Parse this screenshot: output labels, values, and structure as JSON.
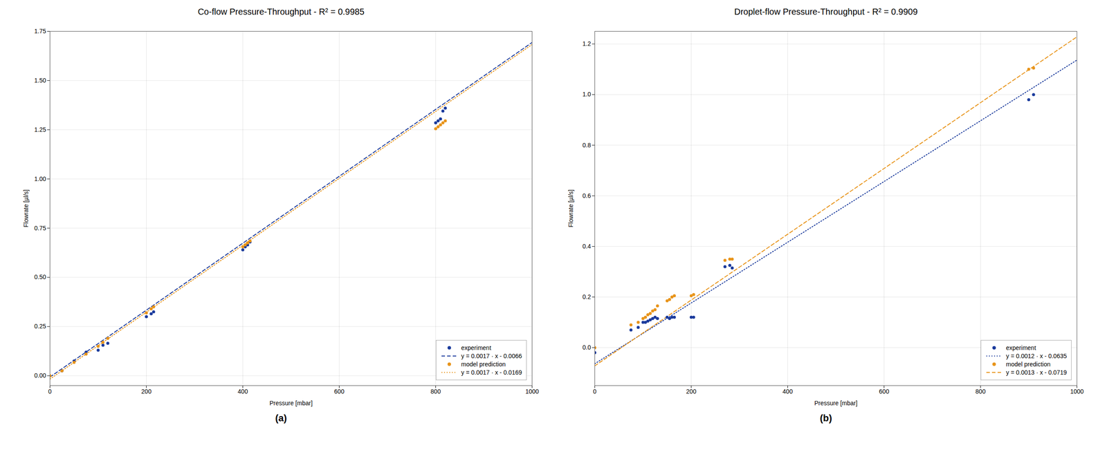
{
  "chart_data": [
    {
      "type": "scatter",
      "title": "Co-flow Pressure-Throughput - R² = 0.9985",
      "x_label": "Pressure [mbar]",
      "y_label": "Flowrate [µl/s]",
      "caption": "(a)",
      "xlim": [
        0,
        1000
      ],
      "ylim": [
        -0.05,
        1.75
      ],
      "xticks": [
        0,
        200,
        400,
        600,
        800,
        1000
      ],
      "yticks": [
        {
          "value": 0.0,
          "label": "0.00"
        },
        0.25,
        {
          "value": 0.5,
          "label": "0.50"
        },
        0.75,
        {
          "value": 1.0,
          "label": "1.00"
        },
        1.25,
        {
          "value": 1.5,
          "label": "1.50"
        },
        1.75
      ],
      "grid": true,
      "legend": "lower right",
      "series": [
        {
          "name": "experiment",
          "type": "scatter",
          "marker": "circle",
          "color": "#1a3a9c",
          "x": [
            25,
            50,
            75,
            100,
            110,
            120,
            200,
            210,
            215,
            400,
            405,
            410,
            415,
            800,
            805,
            810,
            815,
            820
          ],
          "values": [
            0.025,
            0.075,
            0.12,
            0.13,
            0.155,
            0.165,
            0.3,
            0.315,
            0.325,
            0.64,
            0.655,
            0.665,
            0.68,
            1.285,
            1.295,
            1.305,
            1.345,
            1.36
          ]
        },
        {
          "name": "y = 0.0017 · x - 0.0066",
          "type": "line",
          "line_style": "dashed",
          "color": "#1a3a9c",
          "x": [
            0,
            1000
          ],
          "values": [
            -0.0066,
            1.6934
          ]
        },
        {
          "name": "model prediction",
          "type": "scatter",
          "marker": "circle",
          "color": "#e8941a",
          "x": [
            0,
            25,
            50,
            75,
            100,
            110,
            120,
            200,
            210,
            215,
            400,
            405,
            410,
            415,
            800,
            805,
            810,
            815,
            820
          ],
          "values": [
            0.0,
            0.025,
            0.068,
            0.11,
            0.15,
            0.17,
            0.19,
            0.32,
            0.34,
            0.35,
            0.655,
            0.665,
            0.675,
            0.685,
            1.255,
            1.265,
            1.275,
            1.285,
            1.295
          ]
        },
        {
          "name": "y = 0.0017 · x - 0.0169",
          "type": "line",
          "line_style": "dotted",
          "color": "#e8941a",
          "x": [
            0,
            1000
          ],
          "values": [
            -0.0169,
            1.6831
          ]
        }
      ]
    },
    {
      "type": "scatter",
      "title": "Droplet-flow Pressure-Throughput - R² = 0.9909",
      "x_label": "Pressure [mbar]",
      "y_label": "Flowrate [µl/s]",
      "caption": "(b)",
      "xlim": [
        0,
        1000
      ],
      "ylim": [
        -0.15,
        1.25
      ],
      "xticks": [
        0,
        200,
        400,
        600,
        800,
        1000
      ],
      "yticks": [
        {
          "value": 0.0,
          "label": "0.0"
        },
        0.2,
        0.4,
        0.6,
        0.8,
        {
          "value": 1.0,
          "label": "1.0"
        },
        1.2
      ],
      "grid": true,
      "legend": "lower right",
      "series": [
        {
          "name": "experiment",
          "type": "scatter",
          "marker": "circle",
          "color": "#1a3a9c",
          "x": [
            0,
            75,
            90,
            100,
            105,
            110,
            115,
            120,
            125,
            130,
            150,
            155,
            160,
            165,
            200,
            205,
            270,
            280,
            285,
            900,
            910
          ],
          "values": [
            -0.02,
            0.07,
            0.08,
            0.1,
            0.1,
            0.105,
            0.11,
            0.115,
            0.12,
            0.115,
            0.12,
            0.115,
            0.12,
            0.12,
            0.12,
            0.12,
            0.32,
            0.325,
            0.315,
            0.98,
            1.0
          ]
        },
        {
          "name": "y = 0.0012 · x - 0.0635",
          "type": "line",
          "line_style": "dotted",
          "color": "#1a3a9c",
          "x": [
            0,
            1000
          ],
          "values": [
            -0.0635,
            1.1365
          ]
        },
        {
          "name": "model prediction",
          "type": "scatter",
          "marker": "circle",
          "color": "#e8941a",
          "x": [
            0,
            75,
            90,
            100,
            105,
            110,
            115,
            120,
            125,
            130,
            150,
            155,
            160,
            165,
            200,
            205,
            270,
            280,
            285,
            900,
            910
          ],
          "values": [
            0.0,
            0.09,
            0.1,
            0.115,
            0.12,
            0.13,
            0.135,
            0.145,
            0.15,
            0.165,
            0.185,
            0.19,
            0.2,
            0.205,
            0.205,
            0.21,
            0.345,
            0.35,
            0.35,
            1.1,
            1.105
          ]
        },
        {
          "name": "y = 0.0013 · x - 0.0719",
          "type": "line",
          "line_style": "dashed",
          "color": "#e8941a",
          "x": [
            0,
            1000
          ],
          "values": [
            -0.0719,
            1.2281
          ]
        }
      ]
    }
  ]
}
